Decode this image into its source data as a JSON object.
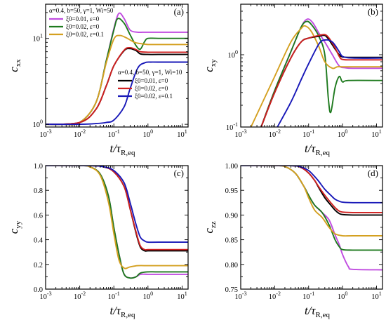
{
  "figure": {
    "colors": {
      "magenta": "#c04ce0",
      "green": "#1e7a1e",
      "gold": "#d4a020",
      "black": "#000000",
      "red": "#d02020",
      "blue": "#1818b8"
    },
    "legend_top": {
      "title": "α=0.4, b=50, γ=1, Wi=50",
      "entries": [
        "ξ0=0.01, ε=0",
        "ξ0=0.02, ε=0",
        "ξ0=0.02, ε=0.1"
      ]
    },
    "legend_bottom": {
      "title": "α=0.4, b=50, γ=1, Wi=10",
      "entries": [
        "ξ0=0.01, ε=0",
        "ξ0=0.02, ε=0",
        "ξ0=0.02, ε=0.1"
      ]
    }
  },
  "chart_data": [
    {
      "panel": "(a)",
      "type": "line",
      "xlabel": "t/τR,eq",
      "ylabel": "cxx",
      "xscale": "log",
      "yscale": "log",
      "xlim": [
        0.001,
        15
      ],
      "ylim": [
        0.93,
        25
      ],
      "xticks": [
        "10-3",
        "10-2",
        "10-1",
        "100",
        "101"
      ],
      "yticks": [
        "100",
        "101"
      ],
      "series": [
        {
          "color": "magenta",
          "x": [
            0.001,
            0.003,
            0.01,
            0.03,
            0.06,
            0.1,
            0.14,
            0.2,
            0.3,
            0.5,
            0.7,
            1,
            2,
            15
          ],
          "y": [
            1.0,
            1.0,
            1.05,
            1.8,
            5.5,
            13,
            19.5,
            17,
            12.5,
            11.8,
            11.8,
            11.8,
            11.8,
            11.8
          ]
        },
        {
          "color": "green",
          "x": [
            0.001,
            0.003,
            0.01,
            0.03,
            0.06,
            0.1,
            0.13,
            0.2,
            0.3,
            0.45,
            0.6,
            0.8,
            1,
            2,
            15
          ],
          "y": [
            1.0,
            1.0,
            1.05,
            1.8,
            5.5,
            12.5,
            17,
            15,
            11,
            8.2,
            7.5,
            9.2,
            10,
            10,
            10
          ]
        },
        {
          "color": "gold",
          "x": [
            0.001,
            0.003,
            0.01,
            0.03,
            0.06,
            0.1,
            0.15,
            0.25,
            0.4,
            0.6,
            1,
            2,
            15
          ],
          "y": [
            1.0,
            1.0,
            1.05,
            1.8,
            5.2,
            9.8,
            10.8,
            10.0,
            9.0,
            8.7,
            8.5,
            8.5,
            8.5
          ]
        },
        {
          "color": "black",
          "x": [
            0.001,
            0.01,
            0.03,
            0.06,
            0.1,
            0.2,
            0.3,
            0.45,
            0.6,
            1,
            2,
            15
          ],
          "y": [
            1.0,
            1.05,
            1.5,
            2.8,
            4.8,
            7.2,
            7.6,
            7.2,
            6.6,
            6.5,
            6.5,
            6.5
          ]
        },
        {
          "color": "red",
          "x": [
            0.001,
            0.01,
            0.03,
            0.06,
            0.1,
            0.2,
            0.3,
            0.45,
            0.6,
            1,
            2,
            15
          ],
          "y": [
            1.0,
            1.05,
            1.5,
            2.8,
            4.8,
            7.3,
            7.8,
            7.4,
            7.0,
            6.9,
            6.9,
            6.9
          ]
        },
        {
          "color": "blue",
          "x": [
            0.001,
            0.01,
            0.03,
            0.06,
            0.1,
            0.2,
            0.3,
            0.5,
            0.8,
            1.2,
            2,
            15
          ],
          "y": [
            1.0,
            1.0,
            1.02,
            1.05,
            1.12,
            1.6,
            2.6,
            4.5,
            5.2,
            5.3,
            5.3,
            5.3
          ]
        }
      ]
    },
    {
      "panel": "(b)",
      "type": "line",
      "xlabel": "t/τR,eq",
      "ylabel": "cxy",
      "xscale": "log",
      "yscale": "log",
      "xlim": [
        0.001,
        15
      ],
      "ylim": [
        0.1,
        5
      ],
      "xticks": [
        "10-3",
        "10-2",
        "10-1",
        "100",
        "101"
      ],
      "yticks": [
        "10-1",
        "100"
      ],
      "series": [
        {
          "color": "magenta",
          "x": [
            0.004,
            0.01,
            0.03,
            0.06,
            0.09,
            0.13,
            0.2,
            0.3,
            0.5,
            0.8,
            1.2,
            2,
            15
          ],
          "y": [
            0.1,
            0.32,
            1.1,
            2.4,
            3.1,
            2.8,
            2.0,
            1.5,
            1.0,
            0.7,
            0.66,
            0.65,
            0.65
          ]
        },
        {
          "color": "green",
          "x": [
            0.004,
            0.01,
            0.03,
            0.06,
            0.09,
            0.13,
            0.2,
            0.3,
            0.38,
            0.45,
            0.6,
            0.8,
            1,
            1.5,
            15
          ],
          "y": [
            0.1,
            0.32,
            1.1,
            2.4,
            2.9,
            2.5,
            1.8,
            1.0,
            0.25,
            0.16,
            0.35,
            0.5,
            0.42,
            0.44,
            0.44
          ]
        },
        {
          "color": "gold",
          "x": [
            0.002,
            0.005,
            0.01,
            0.03,
            0.06,
            0.08,
            0.12,
            0.2,
            0.3,
            0.5,
            0.7,
            1,
            2,
            15
          ],
          "y": [
            0.1,
            0.25,
            0.5,
            1.5,
            2.3,
            2.5,
            2.1,
            1.3,
            0.8,
            0.65,
            0.68,
            0.68,
            0.68,
            0.68
          ]
        },
        {
          "color": "black",
          "x": [
            0.004,
            0.01,
            0.03,
            0.06,
            0.1,
            0.2,
            0.3,
            0.4,
            0.6,
            0.8,
            1,
            2,
            15
          ],
          "y": [
            0.1,
            0.3,
            0.9,
            1.5,
            1.7,
            1.8,
            1.85,
            1.6,
            1.2,
            1.0,
            0.93,
            0.92,
            0.92
          ]
        },
        {
          "color": "red",
          "x": [
            0.004,
            0.01,
            0.03,
            0.06,
            0.1,
            0.2,
            0.3,
            0.4,
            0.6,
            0.8,
            1,
            2,
            15
          ],
          "y": [
            0.1,
            0.3,
            0.9,
            1.5,
            1.7,
            1.85,
            1.9,
            1.7,
            1.25,
            0.95,
            0.86,
            0.85,
            0.85
          ]
        },
        {
          "color": "blue",
          "x": [
            0.012,
            0.03,
            0.06,
            0.1,
            0.2,
            0.3,
            0.5,
            0.8,
            1,
            2,
            15
          ],
          "y": [
            0.1,
            0.22,
            0.45,
            0.75,
            1.4,
            1.6,
            1.5,
            1.1,
            0.95,
            0.9,
            0.9
          ]
        }
      ]
    },
    {
      "panel": "(c)",
      "type": "line",
      "xlabel": "t/τR,eq",
      "ylabel": "cyy",
      "xscale": "log",
      "yscale": "linear",
      "xlim": [
        0.001,
        15
      ],
      "ylim": [
        0.0,
        1.0
      ],
      "xticks": [
        "10-3",
        "10-2",
        "10-1",
        "100",
        "101"
      ],
      "yticks": [
        "0.0",
        "0.2",
        "0.4",
        "0.6",
        "0.8",
        "1.0"
      ],
      "series": [
        {
          "color": "magenta",
          "x": [
            0.001,
            0.01,
            0.02,
            0.04,
            0.07,
            0.1,
            0.15,
            0.2,
            0.3,
            0.45,
            0.6,
            1,
            2,
            15
          ],
          "y": [
            1.0,
            1.0,
            0.99,
            0.93,
            0.75,
            0.5,
            0.25,
            0.12,
            0.09,
            0.1,
            0.12,
            0.12,
            0.12,
            0.12
          ]
        },
        {
          "color": "green",
          "x": [
            0.001,
            0.01,
            0.02,
            0.04,
            0.07,
            0.1,
            0.15,
            0.2,
            0.3,
            0.45,
            0.6,
            1,
            2,
            15
          ],
          "y": [
            1.0,
            1.0,
            0.99,
            0.93,
            0.75,
            0.5,
            0.25,
            0.12,
            0.09,
            0.1,
            0.13,
            0.14,
            0.14,
            0.14
          ]
        },
        {
          "color": "gold",
          "x": [
            0.001,
            0.01,
            0.02,
            0.04,
            0.07,
            0.1,
            0.14,
            0.2,
            0.3,
            0.5,
            1,
            2,
            15
          ],
          "y": [
            1.0,
            1.0,
            0.99,
            0.92,
            0.7,
            0.45,
            0.24,
            0.17,
            0.18,
            0.19,
            0.19,
            0.19,
            0.19
          ]
        },
        {
          "color": "black",
          "x": [
            0.001,
            0.02,
            0.05,
            0.1,
            0.2,
            0.3,
            0.45,
            0.6,
            0.8,
            1,
            2,
            15
          ],
          "y": [
            1.0,
            1.0,
            0.99,
            0.95,
            0.83,
            0.65,
            0.45,
            0.34,
            0.31,
            0.31,
            0.31,
            0.31
          ]
        },
        {
          "color": "red",
          "x": [
            0.001,
            0.02,
            0.05,
            0.1,
            0.2,
            0.3,
            0.45,
            0.6,
            0.8,
            1,
            2,
            15
          ],
          "y": [
            1.0,
            1.0,
            0.99,
            0.95,
            0.83,
            0.65,
            0.46,
            0.35,
            0.32,
            0.32,
            0.32,
            0.32
          ]
        },
        {
          "color": "blue",
          "x": [
            0.001,
            0.02,
            0.05,
            0.1,
            0.2,
            0.3,
            0.45,
            0.6,
            0.8,
            1,
            2,
            15
          ],
          "y": [
            1.0,
            1.0,
            0.99,
            0.96,
            0.86,
            0.7,
            0.52,
            0.42,
            0.39,
            0.38,
            0.38,
            0.38
          ]
        }
      ]
    },
    {
      "panel": "(d)",
      "type": "line",
      "xlabel": "t/τR,eq",
      "ylabel": "czz",
      "xscale": "log",
      "yscale": "linear",
      "xlim": [
        0.001,
        15
      ],
      "ylim": [
        0.75,
        1.0
      ],
      "xticks": [
        "10-3",
        "10-2",
        "10-1",
        "100",
        "101"
      ],
      "yticks": [
        "0.75",
        "0.80",
        "0.85",
        "0.90",
        "0.95",
        "1.00"
      ],
      "series": [
        {
          "color": "magenta",
          "x": [
            0.001,
            0.01,
            0.02,
            0.04,
            0.07,
            0.1,
            0.15,
            0.25,
            0.4,
            0.6,
            0.8,
            1,
            1.5,
            2,
            15
          ],
          "y": [
            1.0,
            1.0,
            0.998,
            0.985,
            0.96,
            0.94,
            0.92,
            0.905,
            0.89,
            0.86,
            0.84,
            0.82,
            0.795,
            0.79,
            0.789
          ]
        },
        {
          "color": "green",
          "x": [
            0.001,
            0.01,
            0.02,
            0.04,
            0.07,
            0.1,
            0.15,
            0.25,
            0.4,
            0.6,
            0.8,
            1,
            2,
            15
          ],
          "y": [
            1.0,
            1.0,
            0.998,
            0.985,
            0.96,
            0.94,
            0.92,
            0.905,
            0.88,
            0.85,
            0.836,
            0.83,
            0.829,
            0.829
          ]
        },
        {
          "color": "gold",
          "x": [
            0.001,
            0.01,
            0.02,
            0.04,
            0.07,
            0.1,
            0.15,
            0.25,
            0.4,
            0.6,
            1,
            2,
            15
          ],
          "y": [
            1.0,
            1.0,
            0.998,
            0.985,
            0.96,
            0.935,
            0.91,
            0.895,
            0.875,
            0.862,
            0.858,
            0.858,
            0.858
          ]
        },
        {
          "color": "black",
          "x": [
            0.001,
            0.03,
            0.06,
            0.1,
            0.15,
            0.2,
            0.3,
            0.45,
            0.6,
            0.8,
            1,
            2,
            15
          ],
          "y": [
            1.0,
            1.0,
            0.996,
            0.985,
            0.97,
            0.955,
            0.935,
            0.92,
            0.91,
            0.903,
            0.901,
            0.9,
            0.9
          ]
        },
        {
          "color": "red",
          "x": [
            0.001,
            0.03,
            0.06,
            0.1,
            0.15,
            0.2,
            0.3,
            0.45,
            0.6,
            0.8,
            1,
            2,
            15
          ],
          "y": [
            1.0,
            1.0,
            0.996,
            0.985,
            0.97,
            0.957,
            0.94,
            0.925,
            0.915,
            0.908,
            0.906,
            0.905,
            0.905
          ]
        },
        {
          "color": "blue",
          "x": [
            0.001,
            0.03,
            0.06,
            0.1,
            0.15,
            0.2,
            0.3,
            0.45,
            0.6,
            0.8,
            1,
            2,
            15
          ],
          "y": [
            1.0,
            1.0,
            0.997,
            0.99,
            0.978,
            0.968,
            0.952,
            0.94,
            0.932,
            0.928,
            0.926,
            0.925,
            0.925
          ]
        }
      ]
    }
  ]
}
